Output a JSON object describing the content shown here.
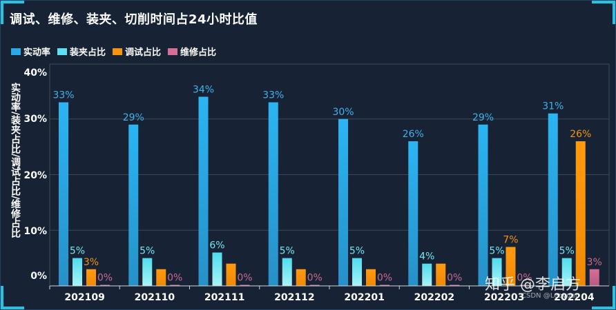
{
  "title": "调试、维修、装夹、切削时间占24小时比值",
  "legend": [
    {
      "label": "实动率",
      "color": "#2ba9e6"
    },
    {
      "label": "装夹占比",
      "color": "#5ce1f2"
    },
    {
      "label": "调试占比",
      "color": "#f7930c"
    },
    {
      "label": "维修占比",
      "color": "#d56f95"
    }
  ],
  "watermark": "知乎 @李启方",
  "watermark_small": "CSDN @Leoyuan",
  "chart_data": {
    "type": "bar",
    "title": "调试、维修、装夹、切削时间占24小时比值",
    "ylabel": "实动率/装夹占比/调试占比/维修占比",
    "xlabel": "",
    "yticks": [
      "0%",
      "10%",
      "20%",
      "30%",
      "40%"
    ],
    "ylim": [
      0,
      40
    ],
    "categories": [
      "202109",
      "202110",
      "202111",
      "202112",
      "202201",
      "202202",
      "202203",
      "202204"
    ],
    "series": [
      {
        "name": "实动率",
        "color": "#2ba9e6",
        "values": [
          33,
          29,
          34,
          33,
          30,
          26,
          29,
          31
        ],
        "labels": [
          "33%",
          "29%",
          "34%",
          "33%",
          "30%",
          "26%",
          "29%",
          "31%"
        ]
      },
      {
        "name": "装夹占比",
        "color": "#5ce1f2",
        "values": [
          5,
          5,
          6,
          5,
          5,
          4,
          5,
          5
        ],
        "labels": [
          "5%",
          "5%",
          "6%",
          "5%",
          "5%",
          "4%",
          "5%",
          "5%"
        ]
      },
      {
        "name": "调试占比",
        "color": "#f7930c",
        "values": [
          3,
          3,
          4,
          3,
          3,
          4,
          7,
          26
        ],
        "labels": [
          "3%",
          "",
          "",
          "",
          "",
          "",
          "7%",
          "26%"
        ]
      },
      {
        "name": "维修占比",
        "color": "#d56f95",
        "values": [
          0,
          0,
          0,
          0,
          0,
          0,
          0,
          3
        ],
        "labels": [
          "0%",
          "0%",
          "0%",
          "0%",
          "0%",
          "0%",
          "0%",
          "3%"
        ]
      }
    ],
    "grid": true,
    "legend_position": "top-left"
  }
}
